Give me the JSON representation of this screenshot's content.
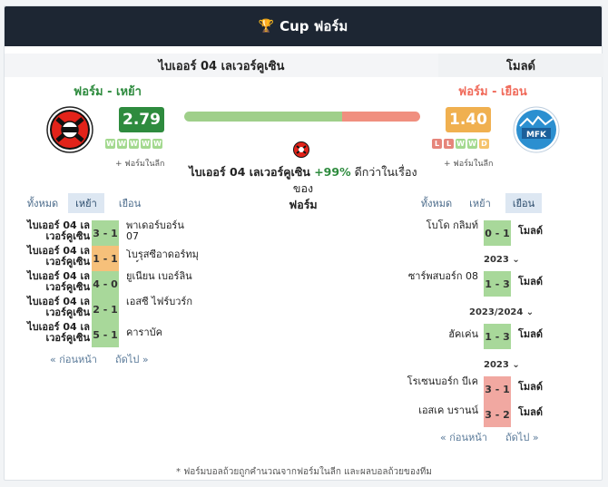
{
  "header": {
    "title": "Cup ฟอร์ม",
    "icon": "trophy-icon"
  },
  "home": {
    "name": "ไบเออร์ 04 เลเวอร์คูเซิน",
    "form_label": "ฟอร์ม - เหย้า",
    "score": "2.79",
    "form": [
      "W",
      "W",
      "W",
      "W",
      "W"
    ],
    "league_note": "+ ฟอร์มในลีก",
    "color": "#2e8b3e",
    "badge_color": "#2e8b3e"
  },
  "away": {
    "name": "โมลด์",
    "form_label": "ฟอร์ม - เยือน",
    "score": "1.40",
    "form": [
      "L",
      "L",
      "W",
      "W",
      "D"
    ],
    "league_note": "+ ฟอร์มในลีก",
    "color": "#f06a5a",
    "badge_color": "#f0b050"
  },
  "comparison": {
    "home_share": 0.67,
    "prefix": "ไบเออร์ 04 เลเวอร์คูเซิน ",
    "pct": "+99%",
    "suffix": " ดีกว่าในเรื่องของ",
    "topic": "ฟอร์ม"
  },
  "tabs": {
    "all": "ทั้งหมด",
    "home": "เหย้า",
    "away": "เยือน"
  },
  "home_matches": [
    {
      "team": "ไบเออร์ 04 เลเวอร์คูเซิน",
      "score": "3 - 1",
      "result": "win",
      "opponent": "พาเดอร์บอร์น 07"
    },
    {
      "team": "ไบเออร์ 04 เลเวอร์คูเซิน",
      "score": "1 - 1",
      "result": "draw",
      "opponent": "โบรุสซีอาดอร์ทมุนท์"
    },
    {
      "team": "ไบเออร์ 04 เลเวอร์คูเซิน",
      "score": "4 - 0",
      "result": "win",
      "opponent": "ยูเนียน เบอร์ลิน"
    },
    {
      "team": "ไบเออร์ 04 เลเวอร์คูเซิน",
      "score": "2 - 1",
      "result": "win",
      "opponent": "เอสซี ไฟร์บวร์ก"
    },
    {
      "team": "ไบเออร์ 04 เลเวอร์คูเซิน",
      "score": "5 - 1",
      "result": "win",
      "opponent": "คาราบัค"
    }
  ],
  "away_matches": [
    {
      "opponent": "โบโด กลิมท์",
      "score": "0 - 1",
      "result": "win",
      "team": "โมลด์",
      "season": "2023"
    },
    {
      "opponent": "ซาร์พสบอร์ก 08",
      "score": "1 - 3",
      "result": "win",
      "team": "โมลด์",
      "season": "2023/2024"
    },
    {
      "opponent": "ฮัคเค่น",
      "score": "1 - 3",
      "result": "win",
      "team": "โมลด์",
      "season": "2023"
    },
    {
      "opponent": "โรเซนบอร์ก บีเค",
      "score": "3 - 1",
      "result": "loss",
      "team": "โมลด์",
      "season": ""
    },
    {
      "opponent": "เอสเค บรานน์",
      "score": "3 - 2",
      "result": "loss",
      "team": "โมลด์",
      "season": ""
    }
  ],
  "pager": {
    "prev": "« ก่อนหน้า",
    "next": "ถัดไป »"
  },
  "footnote": "* ฟอร์มบอลถ้วยถูกคำนวณจากฟอร์มในลีก และผลบอลถ้วยของทีม"
}
